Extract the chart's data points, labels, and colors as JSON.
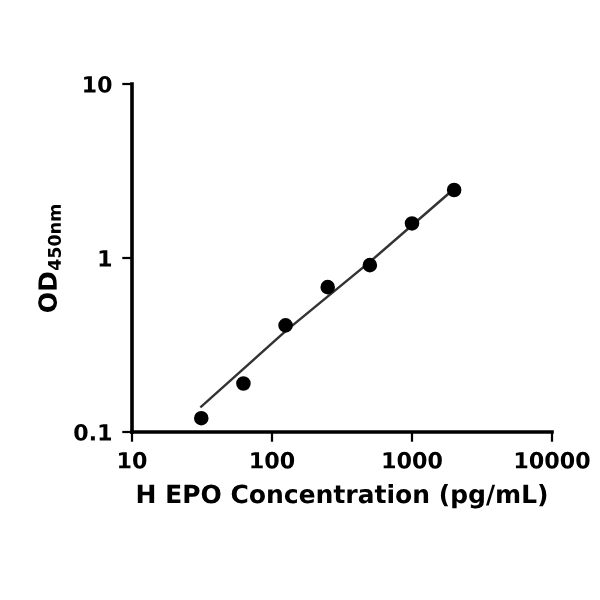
{
  "chart_data": {
    "type": "scatter",
    "xlabel": "H EPO Concentration (pg/mL)",
    "ylabel": "OD$_{450nm}$",
    "log": "xy",
    "xlim": [
      10,
      10000
    ],
    "xticks": [
      10,
      100,
      1000,
      10000
    ],
    "ylim": [
      0.1,
      10
    ],
    "yticks": [
      0.1,
      1,
      10
    ],
    "grid": false,
    "marker": "circle",
    "series": [
      {
        "color": "#000000",
        "x": [
          31.25,
          62.5,
          125,
          250,
          500,
          1000,
          2000
        ],
        "values": [
          0.12,
          0.19,
          0.41,
          0.68,
          0.91,
          1.58,
          2.46
        ]
      },
      {
        "type": "line",
        "color": "#333333",
        "marker": "none",
        "line_style": "solid",
        "x": [
          31.25,
          125,
          500,
          2000
        ],
        "values": [
          0.14,
          0.38,
          0.95,
          2.5
        ]
      }
    ]
  }
}
